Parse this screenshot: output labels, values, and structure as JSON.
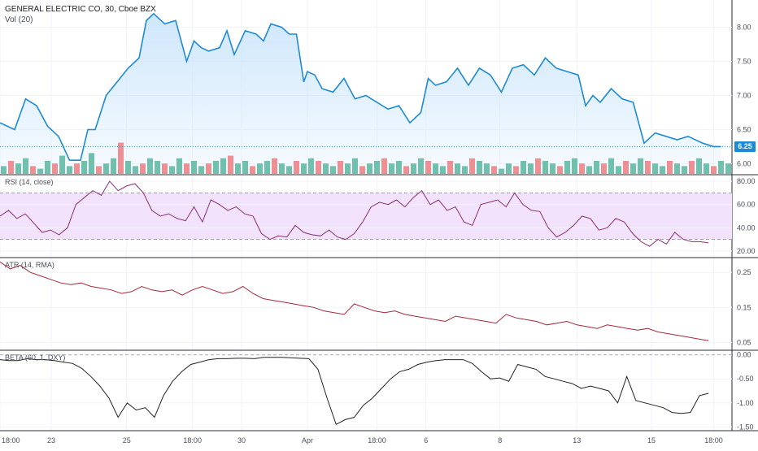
{
  "header": {
    "symbol": "GENERAL ELECTRIC CO, 30, Cboe BZX",
    "volume_label": "Vol (20)"
  },
  "price_tag": "6.25",
  "colors": {
    "price_line": "#1e8ad6",
    "price_fill": "#c9e4fb",
    "vol_up": "#6fc1ad",
    "vol_down": "#ee8f93",
    "rsi_line": "#8b2f73",
    "rsi_band": "#f3e2fc",
    "atr_line": "#a4283c",
    "beta_line": "#222222",
    "grid": "#f0f3fa",
    "axis_text": "#4a4e59"
  },
  "x_axis": {
    "ticks": [
      {
        "label": "18:00",
        "pos": 0.0
      },
      {
        "label": "23",
        "pos": 0.07
      },
      {
        "label": "25",
        "pos": 0.173
      },
      {
        "label": "18:00",
        "pos": 0.263
      },
      {
        "label": "30",
        "pos": 0.33
      },
      {
        "label": "Apr",
        "pos": 0.42
      },
      {
        "label": "18:00",
        "pos": 0.515
      },
      {
        "label": "6",
        "pos": 0.582
      },
      {
        "label": "8",
        "pos": 0.683
      },
      {
        "label": "13",
        "pos": 0.788
      },
      {
        "label": "15",
        "pos": 0.89
      },
      {
        "label": "18:00",
        "pos": 0.975
      }
    ]
  },
  "chart_data": [
    {
      "type": "area",
      "title": "GENERAL ELECTRIC CO, 30, Cboe BZX",
      "ylim": [
        5.85,
        8.4
      ],
      "yticks": [
        "6.00",
        "6.50",
        "7.00",
        "7.50",
        "8.00"
      ],
      "last_value": 6.25,
      "x": [
        0,
        0.02,
        0.035,
        0.05,
        0.065,
        0.08,
        0.095,
        0.11,
        0.12,
        0.13,
        0.145,
        0.16,
        0.175,
        0.19,
        0.2,
        0.21,
        0.225,
        0.24,
        0.255,
        0.265,
        0.275,
        0.285,
        0.3,
        0.31,
        0.32,
        0.335,
        0.35,
        0.36,
        0.37,
        0.385,
        0.395,
        0.405,
        0.415,
        0.42,
        0.43,
        0.44,
        0.455,
        0.47,
        0.485,
        0.5,
        0.515,
        0.53,
        0.545,
        0.56,
        0.575,
        0.585,
        0.595,
        0.61,
        0.625,
        0.64,
        0.655,
        0.67,
        0.685,
        0.7,
        0.715,
        0.73,
        0.745,
        0.76,
        0.775,
        0.79,
        0.8,
        0.81,
        0.82,
        0.835,
        0.85,
        0.865,
        0.88,
        0.895,
        0.91,
        0.925,
        0.94,
        0.96,
        0.975,
        0.985
      ],
      "values": [
        6.6,
        6.5,
        6.95,
        6.85,
        6.55,
        6.4,
        6.05,
        6.05,
        6.5,
        6.5,
        7.0,
        7.2,
        7.4,
        7.55,
        8.1,
        8.2,
        8.05,
        8.1,
        7.5,
        7.8,
        7.7,
        7.65,
        7.7,
        7.95,
        7.6,
        7.95,
        7.9,
        7.8,
        8.05,
        8.0,
        7.9,
        7.9,
        7.2,
        7.35,
        7.3,
        7.1,
        7.05,
        7.25,
        6.95,
        7.0,
        6.9,
        6.8,
        6.85,
        6.6,
        6.75,
        7.25,
        7.15,
        7.2,
        7.4,
        7.15,
        7.4,
        7.3,
        7.05,
        7.4,
        7.45,
        7.3,
        7.55,
        7.4,
        7.35,
        7.3,
        6.85,
        7.0,
        6.9,
        7.1,
        6.95,
        6.9,
        6.3,
        6.45,
        6.4,
        6.35,
        6.4,
        6.3,
        6.25,
        6.25
      ]
    },
    {
      "type": "bar",
      "title": "Vol (20)",
      "series": [
        {
          "values_up": [
            3,
            5,
            4,
            6,
            3,
            2,
            5,
            4,
            7,
            3,
            4,
            5,
            8,
            3,
            4,
            6,
            12,
            5,
            3,
            4,
            6,
            5,
            4,
            3,
            6,
            4,
            5,
            3,
            4,
            5,
            6,
            7,
            4,
            5,
            3,
            4,
            5,
            6,
            4,
            3,
            5,
            4,
            6,
            5,
            4,
            3,
            5,
            4,
            6,
            3,
            4,
            5,
            6,
            4,
            5,
            3,
            4,
            6,
            5,
            4,
            3,
            5,
            4,
            3,
            6,
            5,
            4,
            3,
            2,
            4,
            3,
            5,
            4,
            6,
            5,
            4,
            3,
            5,
            6,
            4,
            3,
            5,
            4,
            6,
            3,
            5,
            4,
            6,
            5,
            4,
            3,
            5,
            4,
            3,
            5,
            6,
            4,
            3,
            5,
            4
          ]
        }
      ]
    },
    {
      "type": "line",
      "title": "RSI (14, close)",
      "ylim": [
        15,
        85
      ],
      "yticks": [
        "20.00",
        "40.00",
        "60.00",
        "80.00"
      ],
      "band": [
        30,
        70
      ],
      "values": [
        50,
        55,
        48,
        52,
        44,
        36,
        38,
        34,
        40,
        60,
        66,
        72,
        68,
        80,
        72,
        76,
        78,
        70,
        55,
        50,
        52,
        48,
        46,
        58,
        45,
        64,
        60,
        55,
        58,
        52,
        50,
        35,
        30,
        33,
        32,
        42,
        36,
        34,
        33,
        38,
        32,
        30,
        35,
        45,
        58,
        62,
        60,
        64,
        58,
        66,
        72,
        60,
        64,
        55,
        58,
        45,
        42,
        60,
        62,
        64,
        58,
        70,
        60,
        55,
        54,
        40,
        32,
        36,
        42,
        50,
        48,
        38,
        40,
        48,
        45,
        35,
        28,
        24,
        30,
        26,
        36,
        30,
        28,
        28,
        27
      ]
    },
    {
      "type": "line",
      "title": "ATR (14, RMA)",
      "ylim": [
        0.03,
        0.29
      ],
      "yticks": [
        "0.05",
        "0.15",
        "0.25"
      ],
      "values": [
        0.28,
        0.26,
        0.27,
        0.25,
        0.24,
        0.23,
        0.22,
        0.215,
        0.22,
        0.21,
        0.205,
        0.2,
        0.19,
        0.195,
        0.21,
        0.2,
        0.195,
        0.2,
        0.185,
        0.2,
        0.21,
        0.2,
        0.19,
        0.195,
        0.21,
        0.19,
        0.175,
        0.17,
        0.165,
        0.16,
        0.155,
        0.15,
        0.14,
        0.135,
        0.13,
        0.16,
        0.15,
        0.14,
        0.135,
        0.14,
        0.13,
        0.125,
        0.12,
        0.115,
        0.11,
        0.125,
        0.12,
        0.115,
        0.11,
        0.105,
        0.13,
        0.12,
        0.115,
        0.11,
        0.1,
        0.105,
        0.11,
        0.1,
        0.095,
        0.09,
        0.1,
        0.095,
        0.09,
        0.085,
        0.09,
        0.08,
        0.075,
        0.07,
        0.065,
        0.06,
        0.055
      ]
    },
    {
      "type": "line",
      "title": "BETA (60, 1, DXY)",
      "ylim": [
        -1.58,
        0.08
      ],
      "yticks": [
        "0.00",
        "-0.50",
        "-1.00",
        "-1.50"
      ],
      "values": [
        -0.1,
        -0.12,
        -0.12,
        -0.08,
        -0.1,
        -0.1,
        -0.12,
        -0.15,
        -0.18,
        -0.28,
        -0.45,
        -0.65,
        -0.9,
        -1.3,
        -1.0,
        -1.15,
        -1.1,
        -1.3,
        -0.85,
        -0.55,
        -0.35,
        -0.2,
        -0.15,
        -0.1,
        -0.08,
        -0.08,
        -0.07,
        -0.07,
        -0.08,
        -0.05,
        -0.05,
        -0.05,
        -0.06,
        -0.07,
        -0.08,
        -0.3,
        -0.9,
        -1.45,
        -1.35,
        -1.3,
        -1.05,
        -0.9,
        -0.7,
        -0.5,
        -0.35,
        -0.3,
        -0.2,
        -0.15,
        -0.12,
        -0.1,
        -0.1,
        -0.1,
        -0.18,
        -0.35,
        -0.5,
        -0.48,
        -0.55,
        -0.2,
        -0.25,
        -0.3,
        -0.45,
        -0.5,
        -0.55,
        -0.6,
        -0.7,
        -0.65,
        -0.7,
        -0.75,
        -1.0,
        -0.45,
        -0.95,
        -1.0,
        -1.05,
        -1.1,
        -1.2,
        -1.22,
        -1.2,
        -0.85,
        -0.8
      ]
    }
  ]
}
